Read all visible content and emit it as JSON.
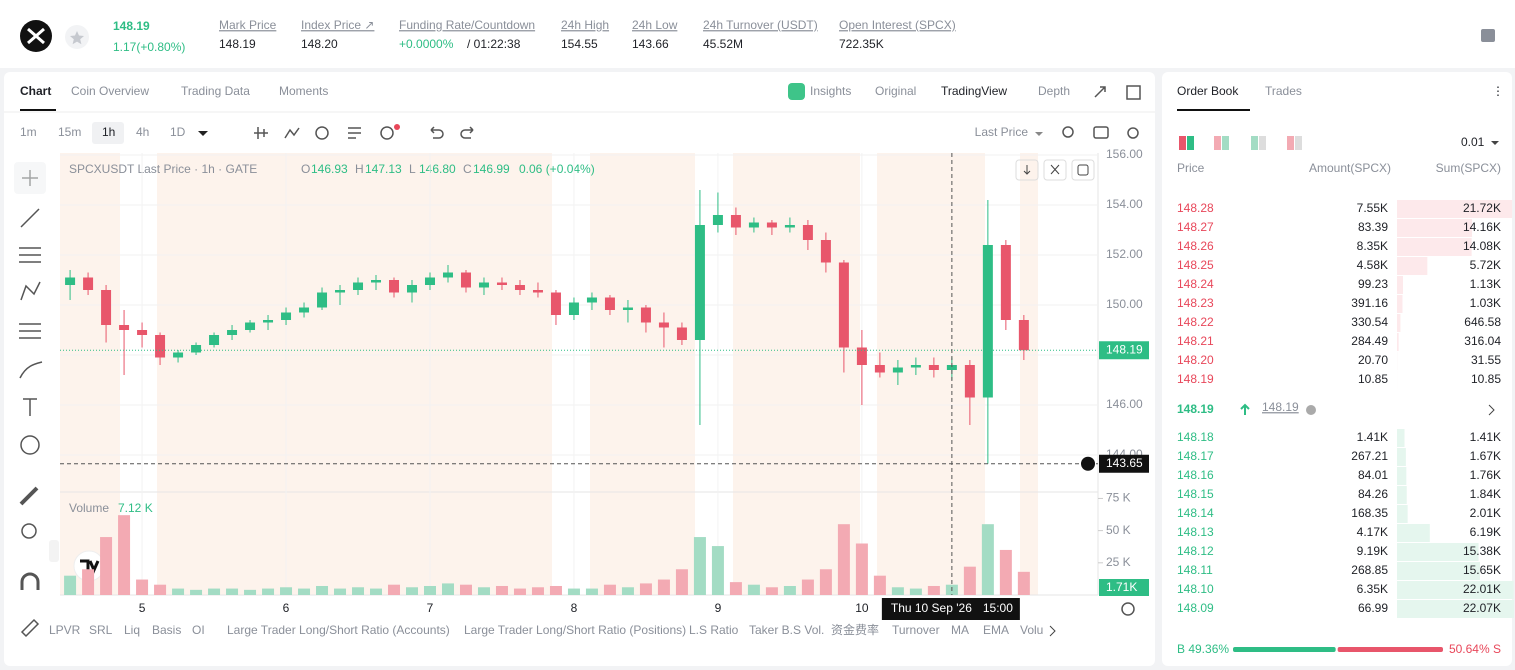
{
  "header": {
    "price": "148.19",
    "change": "1.17(+0.80%)",
    "stats": [
      {
        "label": "Mark Price",
        "value": "148.19"
      },
      {
        "label": "Index Price ↗",
        "value": "148.20"
      },
      {
        "label": "Funding Rate/Countdown",
        "value": "+0.0000%",
        "countdown": "/ 01:22:38"
      },
      {
        "label": "24h High",
        "value": "154.55"
      },
      {
        "label": "24h Low",
        "value": "143.66"
      },
      {
        "label": "24h Turnover (USDT)",
        "value": "45.52M"
      },
      {
        "label": "Open Interest (SPCX)",
        "value": "722.35K"
      }
    ]
  },
  "tabs": [
    "Chart",
    "Coin Overview",
    "Trading Data",
    "Moments"
  ],
  "view_tabs": [
    "Insights",
    "Original",
    "TradingView",
    "Depth"
  ],
  "intervals": [
    "1m",
    "15m",
    "1h",
    "4h",
    "1D"
  ],
  "price_type": "Last Price",
  "legend": {
    "symbol": "SPCXUSDT Last Price · 1h · GATE",
    "ohlc": [
      {
        "key": "O",
        "value": "146.93"
      },
      {
        "key": "H",
        "value": "147.13"
      },
      {
        "key": "L",
        "value": "146.80"
      },
      {
        "key": "C",
        "value": "146.99"
      }
    ],
    "change": "0.06 (+0.04%)"
  },
  "chart_data": {
    "type": "candlestick",
    "x": [
      4.5,
      4.625,
      4.75,
      4.875,
      5,
      5.125,
      5.25,
      5.375,
      5.5,
      5.625,
      5.75,
      5.875,
      6,
      6.125,
      6.25,
      6.375,
      6.5,
      6.625,
      6.75,
      6.875,
      7,
      7.125,
      7.25,
      7.375,
      7.5,
      7.625,
      7.75,
      7.875,
      8,
      8.125,
      8.25,
      8.375,
      8.5,
      8.625,
      8.75,
      8.875,
      9,
      9.125,
      9.25,
      9.375,
      9.5,
      9.625,
      9.75,
      9.875,
      10,
      10.125,
      10.25,
      10.375,
      10.5,
      10.625,
      10.75,
      10.875,
      11,
      11.125
    ],
    "open": [
      150.8,
      151.1,
      150.6,
      149.2,
      149.0,
      148.8,
      147.9,
      148.1,
      148.4,
      148.8,
      149.0,
      149.3,
      149.4,
      149.7,
      149.9,
      150.5,
      150.6,
      150.9,
      151.0,
      150.5,
      150.8,
      151.1,
      151.3,
      150.7,
      150.9,
      150.8,
      150.6,
      150.5,
      149.6,
      150.1,
      150.3,
      149.8,
      149.9,
      149.3,
      149.1,
      148.6,
      153.2,
      153.6,
      153.1,
      153.3,
      153.1,
      153.2,
      152.6,
      151.7,
      148.3,
      147.6,
      147.3,
      147.5,
      147.6,
      147.4,
      147.6,
      146.3,
      152.4,
      149.4
    ],
    "high": [
      151.4,
      151.3,
      150.8,
      149.8,
      149.3,
      148.9,
      148.2,
      148.5,
      148.9,
      149.2,
      149.4,
      149.6,
      149.9,
      150.1,
      150.7,
      150.8,
      151.1,
      151.2,
      151.1,
      151.0,
      151.3,
      151.6,
      151.4,
      151.1,
      151.1,
      151.0,
      150.9,
      150.6,
      150.3,
      150.5,
      150.4,
      150.2,
      150.0,
      149.7,
      149.3,
      154.6,
      154.5,
      153.9,
      153.5,
      153.4,
      153.5,
      153.4,
      152.9,
      151.8,
      149.0,
      148.1,
      147.8,
      147.9,
      147.9,
      147.9,
      147.8,
      154.2,
      152.6,
      149.6
    ],
    "low": [
      150.2,
      150.4,
      148.5,
      147.2,
      148.3,
      147.6,
      147.7,
      148.0,
      148.3,
      148.6,
      148.9,
      149.0,
      149.2,
      149.5,
      149.8,
      150.0,
      150.4,
      150.6,
      150.3,
      150.1,
      150.6,
      150.9,
      150.5,
      150.4,
      150.6,
      150.4,
      150.3,
      149.2,
      149.4,
      149.8,
      149.6,
      149.3,
      148.9,
      148.3,
      148.4,
      145.2,
      152.9,
      152.8,
      152.9,
      152.8,
      152.9,
      152.2,
      151.3,
      147.3,
      146.0,
      147.1,
      146.8,
      147.2,
      147.1,
      147.0,
      145.2,
      143.65,
      149.0,
      147.8
    ],
    "close": [
      151.1,
      150.6,
      149.2,
      149.0,
      148.8,
      147.9,
      148.1,
      148.4,
      148.8,
      149.0,
      149.3,
      149.4,
      149.7,
      149.9,
      150.5,
      150.6,
      150.9,
      151.0,
      150.5,
      150.8,
      151.1,
      151.3,
      150.7,
      150.9,
      150.8,
      150.6,
      150.5,
      149.6,
      150.1,
      150.3,
      149.8,
      149.9,
      149.3,
      149.1,
      148.6,
      153.2,
      153.6,
      153.1,
      153.3,
      153.1,
      153.2,
      152.6,
      151.7,
      148.3,
      147.6,
      147.3,
      147.5,
      147.6,
      147.4,
      147.6,
      146.3,
      152.4,
      149.4,
      148.19
    ],
    "up_color": "#2ebd85",
    "down_color": "#e8566b",
    "xlim": [
      4.43,
      11.64
    ],
    "xticks": [
      5,
      6,
      7,
      8,
      9,
      10
    ],
    "ylim": [
      142.52,
      156.08
    ],
    "yticks": [
      {
        "value": 144,
        "label": "144.00"
      },
      {
        "value": 146,
        "label": "146.00"
      },
      {
        "value": 148,
        "label": "148.00"
      },
      {
        "value": 150,
        "label": "150.00"
      },
      {
        "value": 152,
        "label": "152.00"
      },
      {
        "value": 154,
        "label": "154.00"
      },
      {
        "value": 156,
        "label": "156.00"
      }
    ],
    "last_price": 148.19,
    "crosshair": {
      "price": 143.65,
      "x": 10.625,
      "date": "Thu 10 Sep '26",
      "time": "15:00"
    },
    "volume": {
      "label": "Volume",
      "current": "7.12 K",
      "last_label": "1.71K",
      "values": [
        15,
        20,
        45,
        62,
        12,
        8,
        5,
        4,
        5,
        5,
        4,
        5,
        6,
        5,
        7,
        5,
        6,
        5,
        8,
        6,
        7,
        9,
        8,
        6,
        7,
        5,
        6,
        7,
        5,
        5,
        8,
        6,
        9,
        12,
        20,
        45,
        38,
        10,
        8,
        6,
        7,
        12,
        20,
        55,
        40,
        15,
        6,
        5,
        7,
        8,
        22,
        55,
        35,
        18
      ],
      "ylim": [
        0,
        80
      ],
      "yticks": [
        {
          "value": 25,
          "label": "25 K"
        },
        {
          "value": 50,
          "label": "50 K"
        },
        {
          "value": 75,
          "label": "75 K"
        }
      ],
      "up_color": "#a3dcc4",
      "down_color": "#f3aab3"
    }
  },
  "indicators": [
    "LPVR",
    "SRL",
    "Liq",
    "Basis",
    "OI",
    "Large Trader Long/Short Ratio (Accounts)",
    "Large Trader Long/Short Ratio (Positions)",
    "L.S Ratio",
    "Taker B.S Vol.",
    "资金费率",
    "Turnover",
    "MA",
    "EMA",
    "Volu"
  ],
  "order_book": {
    "tabs": [
      "Order Book",
      "Trades"
    ],
    "precision": "0.01",
    "headers": [
      "Price",
      "Amount(SPCX)",
      "Sum(SPCX)"
    ],
    "asks": [
      [
        "148.28",
        "7.55K",
        "21.72K"
      ],
      [
        "148.27",
        "83.39",
        "14.16K"
      ],
      [
        "148.26",
        "8.35K",
        "14.08K"
      ],
      [
        "148.25",
        "4.58K",
        "5.72K"
      ],
      [
        "148.24",
        "99.23",
        "1.13K"
      ],
      [
        "148.23",
        "391.16",
        "1.03K"
      ],
      [
        "148.22",
        "330.54",
        "646.58"
      ],
      [
        "148.21",
        "284.49",
        "316.04"
      ],
      [
        "148.20",
        "20.70",
        "31.55"
      ],
      [
        "148.19",
        "10.85",
        "10.85"
      ]
    ],
    "last_price": "148.19",
    "mark_price": "148.19",
    "bids": [
      [
        "148.18",
        "1.41K",
        "1.41K"
      ],
      [
        "148.17",
        "267.21",
        "1.67K"
      ],
      [
        "148.16",
        "84.01",
        "1.76K"
      ],
      [
        "148.15",
        "84.26",
        "1.84K"
      ],
      [
        "148.14",
        "168.35",
        "2.01K"
      ],
      [
        "148.13",
        "4.17K",
        "6.19K"
      ],
      [
        "148.12",
        "9.19K",
        "15.38K"
      ],
      [
        "148.11",
        "268.85",
        "15.65K"
      ],
      [
        "148.10",
        "6.35K",
        "22.01K"
      ],
      [
        "148.09",
        "66.99",
        "22.07K"
      ]
    ],
    "buy": {
      "value": 49.36,
      "label": "B 49.36%"
    },
    "sell": {
      "value": 50.64,
      "label": "50.64% S"
    }
  }
}
